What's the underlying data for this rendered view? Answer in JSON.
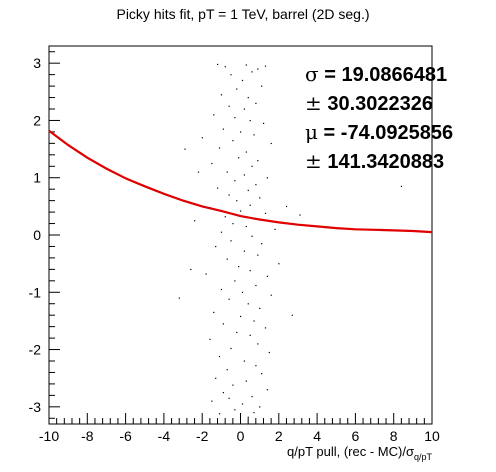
{
  "chart_data": {
    "type": "scatter",
    "title": "Picky hits fit, pT = 1 TeV, barrel (2D seg.)",
    "xlabel": "q/pT pull, (rec - MC)/σ",
    "xlabel_sub": "q/pT",
    "ylabel": "",
    "xlim": [
      -10,
      10
    ],
    "ylim": [
      -3.3,
      3.3
    ],
    "xticks": [
      -10,
      -8,
      -6,
      -4,
      -2,
      0,
      2,
      4,
      6,
      8,
      10
    ],
    "yticks": [
      -3,
      -2,
      -1,
      0,
      1,
      2,
      3
    ],
    "grid": false,
    "stats": [
      {
        "symbol": "σ",
        "text": " = 19.0866481"
      },
      {
        "symbol": "±",
        "text": " 30.3022326"
      },
      {
        "symbol": "μ",
        "text": " = -74.0925856"
      },
      {
        "symbol": "±",
        "text": " 141.3420883"
      }
    ],
    "fit_curve": {
      "color": "#e00000",
      "x": [
        -10,
        -9,
        -8,
        -7,
        -6,
        -5,
        -4,
        -3,
        -2,
        -1,
        0,
        1,
        2,
        3,
        4,
        5,
        6,
        7,
        8,
        9,
        10
      ],
      "y": [
        1.82,
        1.57,
        1.35,
        1.16,
        0.99,
        0.85,
        0.72,
        0.6,
        0.5,
        0.42,
        0.33,
        0.27,
        0.22,
        0.18,
        0.15,
        0.12,
        0.1,
        0.09,
        0.08,
        0.07,
        0.05
      ]
    },
    "points": [
      [
        -1.2,
        2.98
      ],
      [
        -0.8,
        2.94
      ],
      [
        0.3,
        2.97
      ],
      [
        0.9,
        2.9
      ],
      [
        1.3,
        2.95
      ],
      [
        -0.5,
        2.8
      ],
      [
        0.1,
        2.7
      ],
      [
        0.6,
        2.85
      ],
      [
        1.1,
        2.6
      ],
      [
        -0.2,
        2.55
      ],
      [
        -1.0,
        2.45
      ],
      [
        0.4,
        2.4
      ],
      [
        0.8,
        2.3
      ],
      [
        -0.6,
        2.25
      ],
      [
        0.2,
        2.2
      ],
      [
        -1.4,
        2.1
      ],
      [
        -0.3,
        2.05
      ],
      [
        0.5,
        2.0
      ],
      [
        1.2,
        1.95
      ],
      [
        -0.9,
        1.85
      ],
      [
        0.0,
        1.8
      ],
      [
        0.7,
        1.75
      ],
      [
        -2.0,
        1.7
      ],
      [
        -0.4,
        1.65
      ],
      [
        1.6,
        1.6
      ],
      [
        -1.1,
        1.52
      ],
      [
        0.3,
        1.45
      ],
      [
        -2.9,
        1.5
      ],
      [
        -0.1,
        1.35
      ],
      [
        0.9,
        1.3
      ],
      [
        -1.5,
        1.25
      ],
      [
        0.6,
        1.2
      ],
      [
        -0.7,
        1.1
      ],
      [
        0.2,
        1.05
      ],
      [
        1.4,
        1.0
      ],
      [
        -0.3,
        0.95
      ],
      [
        0.8,
        0.88
      ],
      [
        -1.2,
        0.82
      ],
      [
        0.4,
        0.78
      ],
      [
        -0.6,
        0.7
      ],
      [
        1.0,
        0.65
      ],
      [
        -0.2,
        0.6
      ],
      [
        0.5,
        0.52
      ],
      [
        -1.6,
        0.48
      ],
      [
        0.0,
        0.42
      ],
      [
        1.3,
        0.38
      ],
      [
        -0.8,
        0.32
      ],
      [
        0.7,
        0.28
      ],
      [
        -0.4,
        0.2
      ],
      [
        0.3,
        0.15
      ],
      [
        3.1,
        0.35
      ],
      [
        -2.4,
        0.25
      ],
      [
        1.8,
        0.1
      ],
      [
        -1.0,
        0.05
      ],
      [
        0.6,
        -0.02
      ],
      [
        -0.5,
        -0.1
      ],
      [
        1.1,
        -0.15
      ],
      [
        -1.3,
        -0.2
      ],
      [
        0.2,
        -0.28
      ],
      [
        0.9,
        -0.35
      ],
      [
        -0.7,
        -0.42
      ],
      [
        2.0,
        -0.5
      ],
      [
        -0.1,
        -0.55
      ],
      [
        0.5,
        -0.62
      ],
      [
        -1.8,
        -0.68
      ],
      [
        1.4,
        -0.72
      ],
      [
        -0.3,
        -0.8
      ],
      [
        0.8,
        -0.88
      ],
      [
        -1.0,
        -0.95
      ],
      [
        0.1,
        -1.0
      ],
      [
        1.6,
        -1.05
      ],
      [
        -0.6,
        -1.12
      ],
      [
        -3.2,
        -1.1
      ],
      [
        0.4,
        -1.2
      ],
      [
        1.0,
        -1.28
      ],
      [
        -1.4,
        -1.35
      ],
      [
        0.0,
        -1.42
      ],
      [
        0.7,
        -1.5
      ],
      [
        -0.9,
        -1.55
      ],
      [
        1.3,
        -1.62
      ],
      [
        -0.2,
        -1.7
      ],
      [
        0.5,
        -1.75
      ],
      [
        -1.6,
        -1.82
      ],
      [
        0.9,
        -1.9
      ],
      [
        -0.5,
        -1.98
      ],
      [
        1.5,
        -2.05
      ],
      [
        -1.1,
        -2.12
      ],
      [
        0.2,
        -2.2
      ],
      [
        0.8,
        -2.28
      ],
      [
        -0.7,
        -2.35
      ],
      [
        1.1,
        -2.42
      ],
      [
        -1.3,
        -2.5
      ],
      [
        0.3,
        -2.55
      ],
      [
        -0.4,
        -2.62
      ],
      [
        1.4,
        -2.7
      ],
      [
        -0.9,
        -2.75
      ],
      [
        0.6,
        -2.82
      ],
      [
        -1.5,
        -2.9
      ],
      [
        0.1,
        -2.95
      ],
      [
        1.0,
        -3.0
      ],
      [
        -0.3,
        -3.05
      ],
      [
        0.7,
        -3.1
      ],
      [
        -1.1,
        -3.12
      ],
      [
        0.4,
        -3.18
      ],
      [
        -0.6,
        -2.85
      ],
      [
        2.4,
        0.5
      ],
      [
        -2.6,
        -0.6
      ],
      [
        2.7,
        -1.4
      ],
      [
        -2.2,
        1.1
      ],
      [
        8.4,
        0.85
      ]
    ]
  }
}
